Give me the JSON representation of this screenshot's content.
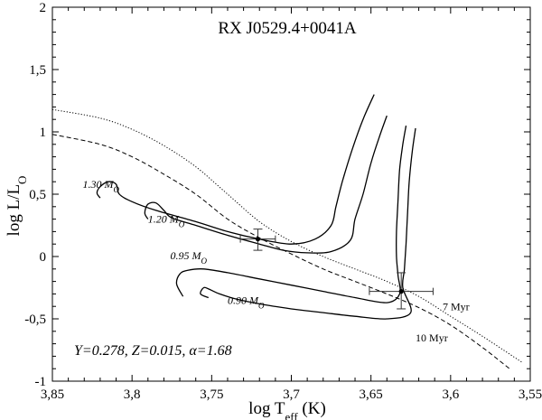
{
  "chart_data": {
    "type": "line",
    "title": "RX J0529.4+0041A",
    "xlabel": {
      "main": "log T",
      "sub": "eff",
      "unit": " (K)"
    },
    "ylabel": {
      "main": "log L/L",
      "sub": "O"
    },
    "xlim": [
      3.85,
      3.55
    ],
    "ylim": [
      -1,
      2
    ],
    "x_reversed": true,
    "x_ticks": [
      {
        "value": 3.85,
        "label": "3,85"
      },
      {
        "value": 3.8,
        "label": "3,8"
      },
      {
        "value": 3.75,
        "label": "3,75"
      },
      {
        "value": 3.7,
        "label": "3,7"
      },
      {
        "value": 3.65,
        "label": "3,65"
      },
      {
        "value": 3.6,
        "label": "3,6"
      },
      {
        "value": 3.55,
        "label": "3,55"
      }
    ],
    "y_ticks": [
      {
        "value": -1,
        "label": "-1"
      },
      {
        "value": -0.5,
        "label": "-0,5"
      },
      {
        "value": 0,
        "label": "0"
      },
      {
        "value": 0.5,
        "label": "0,5"
      },
      {
        "value": 1,
        "label": "1"
      },
      {
        "value": 1.5,
        "label": "1,5"
      },
      {
        "value": 2,
        "label": "2"
      }
    ],
    "grid": false,
    "annotation": "Y=0.278, Z=0.015, α=1.68",
    "tracks": [
      {
        "mass": "1.30",
        "label": "1.30 M",
        "label_sub": "O",
        "points": [
          [
            3.648,
            1.3
          ],
          [
            3.655,
            1.1
          ],
          [
            3.662,
            0.85
          ],
          [
            3.668,
            0.6
          ],
          [
            3.672,
            0.4
          ],
          [
            3.675,
            0.25
          ],
          [
            3.685,
            0.14
          ],
          [
            3.7,
            0.1
          ],
          [
            3.72,
            0.14
          ],
          [
            3.74,
            0.2
          ],
          [
            3.76,
            0.28
          ],
          [
            3.785,
            0.37
          ],
          [
            3.8,
            0.44
          ],
          [
            3.808,
            0.5
          ],
          [
            3.81,
            0.58
          ],
          [
            3.815,
            0.6
          ],
          [
            3.82,
            0.56
          ],
          [
            3.822,
            0.51
          ],
          [
            3.82,
            0.47
          ]
        ]
      },
      {
        "mass": "1.20",
        "label": "1.20 M",
        "label_sub": "O",
        "points": [
          [
            3.64,
            1.13
          ],
          [
            3.645,
            0.95
          ],
          [
            3.65,
            0.75
          ],
          [
            3.655,
            0.5
          ],
          [
            3.66,
            0.3
          ],
          [
            3.663,
            0.13
          ],
          [
            3.675,
            0.04
          ],
          [
            3.69,
            0.03
          ],
          [
            3.705,
            0.05
          ],
          [
            3.72,
            0.1
          ],
          [
            3.74,
            0.17
          ],
          [
            3.76,
            0.25
          ],
          [
            3.775,
            0.31
          ],
          [
            3.78,
            0.37
          ],
          [
            3.785,
            0.43
          ],
          [
            3.79,
            0.42
          ],
          [
            3.792,
            0.35
          ],
          [
            3.79,
            0.3
          ]
        ]
      },
      {
        "mass": "0.95",
        "label": "0.95 M",
        "label_sub": "O",
        "points": [
          [
            3.628,
            1.05
          ],
          [
            3.63,
            0.9
          ],
          [
            3.632,
            0.7
          ],
          [
            3.633,
            0.45
          ],
          [
            3.634,
            0.2
          ],
          [
            3.634,
            0.0
          ],
          [
            3.633,
            -0.15
          ],
          [
            3.632,
            -0.3
          ],
          [
            3.64,
            -0.37
          ],
          [
            3.66,
            -0.33
          ],
          [
            3.68,
            -0.28
          ],
          [
            3.7,
            -0.23
          ],
          [
            3.72,
            -0.18
          ],
          [
            3.74,
            -0.13
          ],
          [
            3.755,
            -0.1
          ],
          [
            3.765,
            -0.11
          ],
          [
            3.77,
            -0.14
          ],
          [
            3.772,
            -0.22
          ],
          [
            3.768,
            -0.32
          ]
        ]
      },
      {
        "mass": "0.90",
        "label": "0.90 M",
        "label_sub": "O",
        "points": [
          [
            3.622,
            1.03
          ],
          [
            3.624,
            0.85
          ],
          [
            3.626,
            0.6
          ],
          [
            3.627,
            0.35
          ],
          [
            3.628,
            0.1
          ],
          [
            3.629,
            -0.1
          ],
          [
            3.63,
            -0.25
          ],
          [
            3.625,
            -0.45
          ],
          [
            3.64,
            -0.5
          ],
          [
            3.66,
            -0.48
          ],
          [
            3.68,
            -0.45
          ],
          [
            3.7,
            -0.42
          ],
          [
            3.72,
            -0.38
          ],
          [
            3.735,
            -0.34
          ],
          [
            3.745,
            -0.3
          ],
          [
            3.752,
            -0.26
          ],
          [
            3.755,
            -0.25
          ],
          [
            3.757,
            -0.3
          ],
          [
            3.752,
            -0.33
          ]
        ]
      }
    ],
    "isochrones": [
      {
        "label": "10 Myr",
        "style": "dashed",
        "points": [
          [
            3.85,
            0.98
          ],
          [
            3.82,
            0.9
          ],
          [
            3.8,
            0.8
          ],
          [
            3.78,
            0.66
          ],
          [
            3.76,
            0.5
          ],
          [
            3.74,
            0.3
          ],
          [
            3.72,
            0.15
          ],
          [
            3.7,
            0.02
          ],
          [
            3.68,
            -0.1
          ],
          [
            3.66,
            -0.2
          ],
          [
            3.64,
            -0.3
          ],
          [
            3.62,
            -0.41
          ],
          [
            3.6,
            -0.55
          ],
          [
            3.58,
            -0.73
          ],
          [
            3.563,
            -0.9
          ]
        ]
      },
      {
        "label": "7 Myr",
        "style": "dotted",
        "points": [
          [
            3.85,
            1.18
          ],
          [
            3.82,
            1.11
          ],
          [
            3.8,
            1.02
          ],
          [
            3.78,
            0.89
          ],
          [
            3.76,
            0.72
          ],
          [
            3.74,
            0.5
          ],
          [
            3.72,
            0.28
          ],
          [
            3.7,
            0.12
          ],
          [
            3.68,
            0.0
          ],
          [
            3.66,
            -0.1
          ],
          [
            3.64,
            -0.2
          ],
          [
            3.62,
            -0.32
          ],
          [
            3.6,
            -0.48
          ],
          [
            3.58,
            -0.64
          ],
          [
            3.555,
            -0.85
          ]
        ]
      }
    ],
    "isochrone_labels": [
      {
        "text": "7 Myr",
        "x": 3.605,
        "y": -0.43
      },
      {
        "text": "10 Myr",
        "x": 3.622,
        "y": -0.68
      }
    ],
    "track_labels": [
      {
        "mass": "1.30",
        "x": 3.831,
        "y": 0.55
      },
      {
        "mass": "1.20",
        "x": 3.79,
        "y": 0.27
      },
      {
        "mass": "0.95",
        "x": 3.776,
        "y": -0.02
      },
      {
        "mass": "0.90",
        "x": 3.74,
        "y": -0.38
      }
    ],
    "stars": [
      {
        "x": 3.721,
        "y": 0.14,
        "xerr": 0.011,
        "yerr_low": 0.09,
        "yerr_high": 0.08
      },
      {
        "x": 3.631,
        "y": -0.28,
        "xerr": 0.02,
        "yerr_low": 0.14,
        "yerr_high": 0.15
      }
    ]
  }
}
